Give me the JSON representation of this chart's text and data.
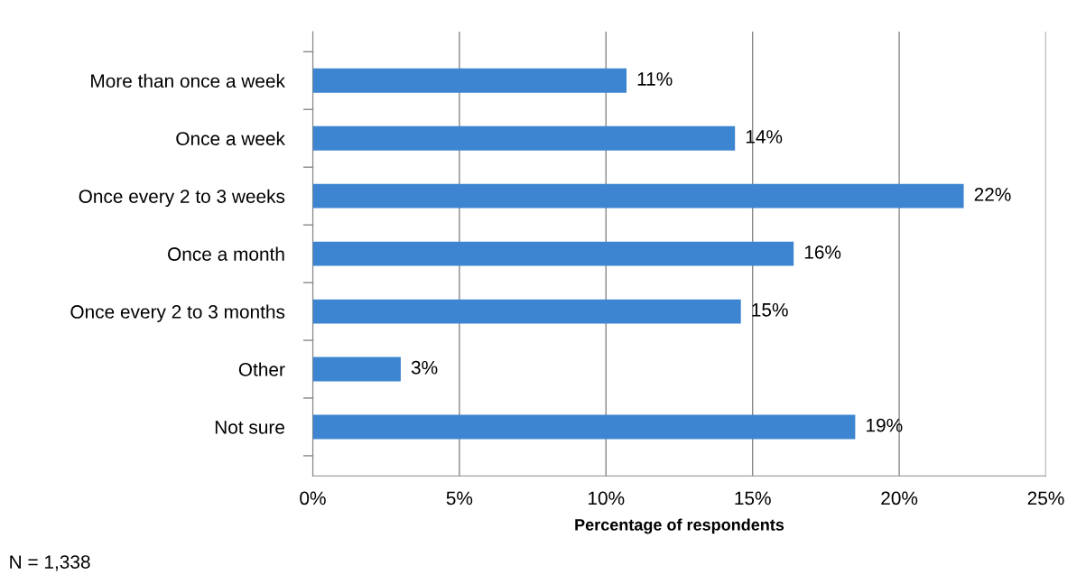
{
  "chart_data": {
    "type": "bar",
    "orientation": "horizontal",
    "categories": [
      "More than once a week",
      "Once a week",
      "Once every 2 to 3 weeks",
      "Once a month",
      "Once every 2 to 3 months",
      "Other",
      "Not sure"
    ],
    "values": [
      10.7,
      14.4,
      22.2,
      16.4,
      14.6,
      3.0,
      18.5
    ],
    "value_labels": [
      "11%",
      "14%",
      "22%",
      "16%",
      "15%",
      "3%",
      "19%"
    ],
    "color": "#3d85d0",
    "xlim": [
      0,
      25
    ],
    "xticks": [
      {
        "value": 0,
        "label": "0%"
      },
      {
        "value": 5,
        "label": "5%"
      },
      {
        "value": 10,
        "label": "10%"
      },
      {
        "value": 15,
        "label": "15%"
      },
      {
        "value": 20,
        "label": "20%"
      },
      {
        "value": 25,
        "label": "25%"
      }
    ],
    "xlabel": "Percentage of respondents",
    "grid": "x",
    "annotations": [
      "N = 1,338"
    ]
  }
}
